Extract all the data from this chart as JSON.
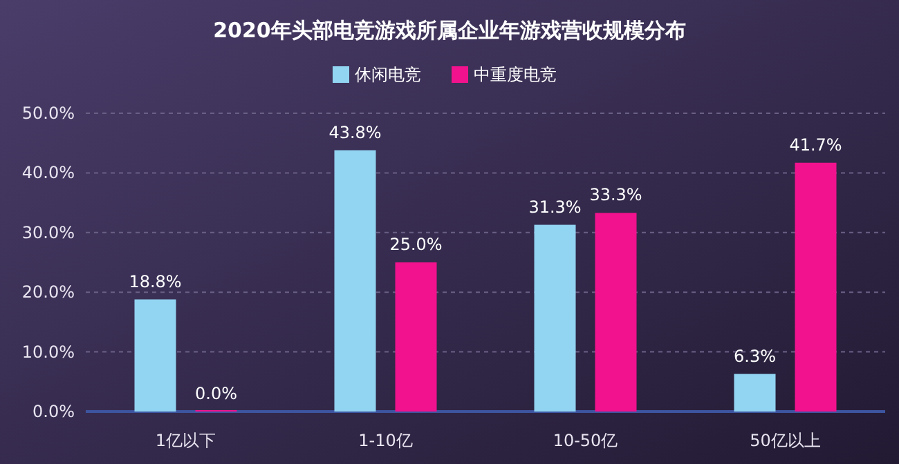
{
  "chart_data": {
    "type": "bar",
    "title": "2020年头部电竞游戏所属企业年游戏营收规模分布",
    "categories": [
      "1亿以下",
      "1-10亿",
      "10-50亿",
      "50亿以上"
    ],
    "series": [
      {
        "name": "休闲电竞",
        "color": "#92d5f3",
        "values": [
          18.8,
          43.8,
          31.3,
          6.3
        ],
        "value_labels": [
          "18.8%",
          "43.8%",
          "31.3%",
          "6.3%"
        ]
      },
      {
        "name": "中重度电竞",
        "color": "#f2128d",
        "values": [
          0.0,
          25.0,
          33.3,
          41.7
        ],
        "value_labels": [
          "0.0%",
          "25.0%",
          "33.3%",
          "41.7%"
        ]
      }
    ],
    "ylim": [
      0,
      50
    ],
    "yticks": [
      {
        "value": 0,
        "label": "0.0%"
      },
      {
        "value": 10,
        "label": "10.0%"
      },
      {
        "value": 20,
        "label": "20.0%"
      },
      {
        "value": 30,
        "label": "30.0%"
      },
      {
        "value": 40,
        "label": "40.0%"
      },
      {
        "value": 50,
        "label": "50.0%"
      }
    ],
    "grid": "y",
    "legend": "top"
  }
}
